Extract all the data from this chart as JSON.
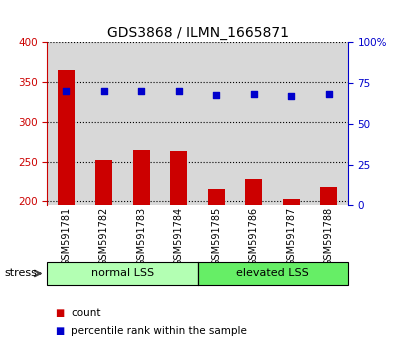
{
  "title": "GDS3868 / ILMN_1665871",
  "samples": [
    "GSM591781",
    "GSM591782",
    "GSM591783",
    "GSM591784",
    "GSM591785",
    "GSM591786",
    "GSM591787",
    "GSM591788"
  ],
  "counts": [
    365,
    252,
    265,
    263,
    215,
    228,
    203,
    218
  ],
  "percentile_ranks_pct": [
    70,
    70,
    70,
    70,
    68,
    68.5,
    67,
    68.5
  ],
  "ylim_left": [
    195,
    400
  ],
  "ylim_right": [
    0,
    100
  ],
  "yticks_left": [
    200,
    250,
    300,
    350,
    400
  ],
  "yticks_right": [
    0,
    25,
    50,
    75,
    100
  ],
  "groups": [
    {
      "label": "normal LSS",
      "indices": [
        0,
        1,
        2,
        3
      ],
      "color": "#b3ffb3"
    },
    {
      "label": "elevated LSS",
      "indices": [
        4,
        5,
        6,
        7
      ],
      "color": "#66ee66"
    }
  ],
  "bar_color": "#cc0000",
  "dot_color": "#0000cc",
  "bar_width": 0.45,
  "bg_col_color": "#d8d8d8",
  "plot_bg": "#ffffff",
  "legend_items": [
    {
      "color": "#cc0000",
      "label": "count"
    },
    {
      "color": "#0000cc",
      "label": "percentile rank within the sample"
    }
  ],
  "stress_label": "stress",
  "left_axis_color": "#cc0000",
  "right_axis_color": "#0000cc",
  "title_fontsize": 10,
  "tick_fontsize": 7.5,
  "xlabel_fontsize": 7
}
